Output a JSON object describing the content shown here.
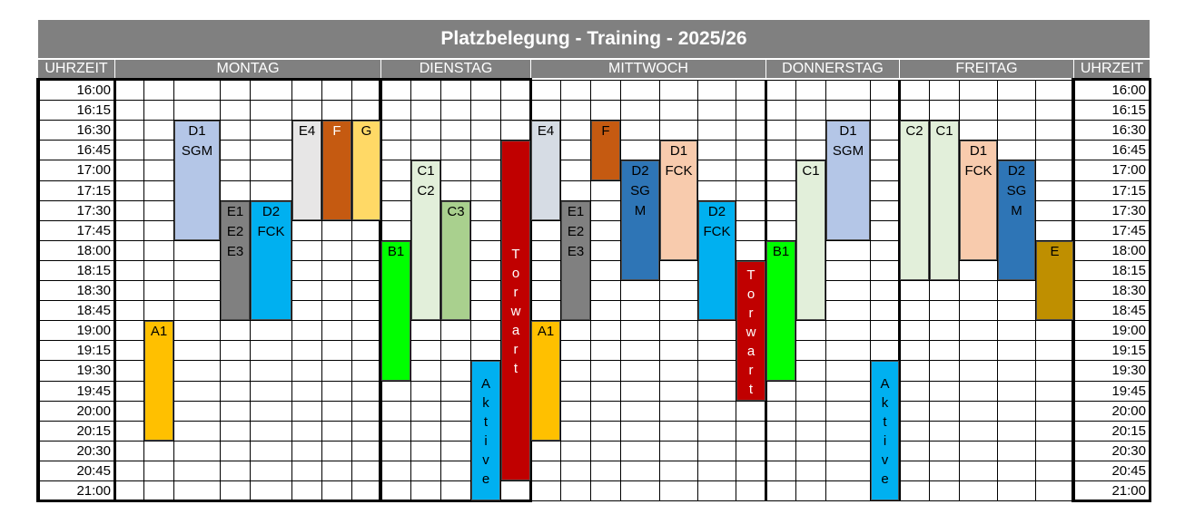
{
  "title": "Platzbelegung - Training - 2025/26",
  "headers": {
    "left_time": "UHRZEIT",
    "right_time": "UHRZEIT",
    "days": [
      "MONTAG",
      "DIENSTAG",
      "MITTWOCH",
      "DONNERSTAG",
      "FREITAG"
    ]
  },
  "times": [
    "16:00",
    "16:15",
    "16:30",
    "16:45",
    "17:00",
    "17:15",
    "17:30",
    "17:45",
    "18:00",
    "18:15",
    "18:30",
    "18:45",
    "19:00",
    "19:15",
    "19:30",
    "19:45",
    "20:00",
    "20:15",
    "20:30",
    "20:45",
    "21:00"
  ],
  "blocks": [
    {
      "label": "D1\nSGM",
      "color": "#b4c6e7",
      "text_color": "#000000"
    },
    {
      "label": "E1\nE2\nE3",
      "color": "#808080",
      "text_color": "#000000"
    },
    {
      "label": "D2\nFCK",
      "color": "#00b0f0",
      "text_color": "#000000"
    },
    {
      "label": "E4",
      "color": "#e7e6e6",
      "text_color": "#000000"
    },
    {
      "label": "F",
      "color": "#c55a11",
      "text_color": "#ffffff"
    },
    {
      "label": "G",
      "color": "#ffd966",
      "text_color": "#000000"
    },
    {
      "label": "A1",
      "color": "#ffc000",
      "text_color": "#000000"
    },
    {
      "label": "C1\nC2",
      "color": "#e2efda",
      "text_color": "#000000"
    },
    {
      "label": "C3",
      "color": "#a9d08e",
      "text_color": "#000000"
    },
    {
      "label": "B1",
      "color": "#00ff00",
      "text_color": "#000000"
    },
    {
      "label": "A\nk\nt\ni\nv\ne",
      "color": "#00b0f0",
      "text_color": "#000000"
    },
    {
      "label": "T\no\nr\nw\na\nr\nt",
      "color": "#c00000",
      "text_color": "#ffffff"
    },
    {
      "label": "E4",
      "color": "#d6dce4",
      "text_color": "#000000"
    },
    {
      "label": "F",
      "color": "#c55a11",
      "text_color": "#000000"
    },
    {
      "label": "E1\nE2\nE3",
      "color": "#808080",
      "text_color": "#000000"
    },
    {
      "label": "A1",
      "color": "#ffc000",
      "text_color": "#000000"
    },
    {
      "label": "D2\nSG\nM",
      "color": "#2e75b6",
      "text_color": "#000000"
    },
    {
      "label": "D1\nFCK",
      "color": "#f8cbad",
      "text_color": "#000000"
    },
    {
      "label": "D2\nFCK",
      "color": "#00b0f0",
      "text_color": "#000000"
    },
    {
      "label": "T\no\nr\nw\na\nr\nt",
      "color": "#c00000",
      "text_color": "#ffffff"
    },
    {
      "label": "B1",
      "color": "#00ff00",
      "text_color": "#000000"
    },
    {
      "label": "C1",
      "color": "#e2efda",
      "text_color": "#000000"
    },
    {
      "label": "D1\nSGM",
      "color": "#b4c6e7",
      "text_color": "#000000"
    },
    {
      "label": "A\nk\nt\ni\nv\ne",
      "color": "#00b0f0",
      "text_color": "#000000"
    },
    {
      "label": "C2",
      "color": "#e2efda",
      "text_color": "#000000"
    },
    {
      "label": "C1",
      "color": "#e2efda",
      "text_color": "#000000"
    },
    {
      "label": "D1\nFCK",
      "color": "#f8cbad",
      "text_color": "#000000"
    },
    {
      "label": "D2\nSG\nM",
      "color": "#2e75b6",
      "text_color": "#000000"
    },
    {
      "label": "E",
      "color": "#bf8f00",
      "text_color": "#000000"
    }
  ]
}
